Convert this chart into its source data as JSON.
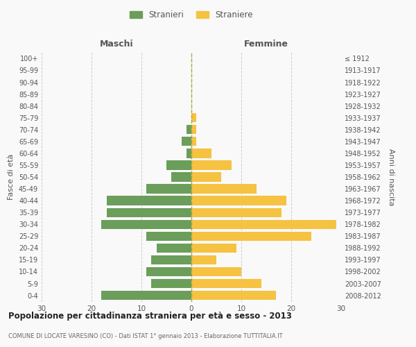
{
  "age_groups": [
    "0-4",
    "5-9",
    "10-14",
    "15-19",
    "20-24",
    "25-29",
    "30-34",
    "35-39",
    "40-44",
    "45-49",
    "50-54",
    "55-59",
    "60-64",
    "65-69",
    "70-74",
    "75-79",
    "80-84",
    "85-89",
    "90-94",
    "95-99",
    "100+"
  ],
  "birth_years": [
    "2008-2012",
    "2003-2007",
    "1998-2002",
    "1993-1997",
    "1988-1992",
    "1983-1987",
    "1978-1982",
    "1973-1977",
    "1968-1972",
    "1963-1967",
    "1958-1962",
    "1953-1957",
    "1948-1952",
    "1943-1947",
    "1938-1942",
    "1933-1937",
    "1928-1932",
    "1923-1927",
    "1918-1922",
    "1913-1917",
    "≤ 1912"
  ],
  "maschi": [
    18,
    8,
    9,
    8,
    7,
    9,
    18,
    17,
    17,
    9,
    4,
    5,
    1,
    2,
    1,
    0,
    0,
    0,
    0,
    0,
    0
  ],
  "femmine": [
    17,
    14,
    10,
    5,
    9,
    24,
    29,
    18,
    19,
    13,
    6,
    8,
    4,
    1,
    1,
    1,
    0,
    0,
    0,
    0,
    0
  ],
  "maschi_color": "#6a9e5a",
  "femmine_color": "#f5c242",
  "bg_color": "#f9f9f9",
  "grid_color": "#cccccc",
  "title": "Popolazione per cittadinanza straniera per età e sesso - 2013",
  "subtitle": "COMUNE DI LOCATE VARESINO (CO) - Dati ISTAT 1° gennaio 2013 - Elaborazione TUTTITALIA.IT",
  "ylabel_left": "Fasce di età",
  "ylabel_right": "Anni di nascita",
  "xlabel_maschi": "Maschi",
  "xlabel_femmine": "Femmine",
  "legend_maschi": "Stranieri",
  "legend_femmine": "Straniere",
  "xlim": 30
}
